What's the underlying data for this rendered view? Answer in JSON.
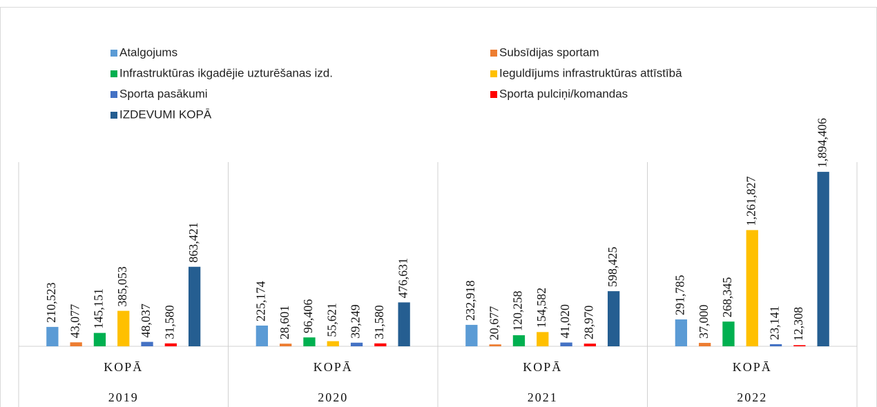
{
  "chart_data": {
    "type": "bar",
    "categories": [
      "KOPĀ",
      "KOPĀ",
      "KOPĀ",
      "KOPĀ"
    ],
    "category_groups": [
      "2019",
      "2020",
      "2021",
      "2022"
    ],
    "ylim": [
      0,
      2000000
    ],
    "series": [
      {
        "name": "Atalgojums",
        "color": "#5b9bd5",
        "values": [
          210523,
          225174,
          232918,
          291785
        ],
        "value_labels": [
          "210,523",
          "225,174",
          "232,918",
          "291,785"
        ]
      },
      {
        "name": "Subsīdijas sportam",
        "color": "#ed7d31",
        "values": [
          43077,
          28601,
          20677,
          37000
        ],
        "value_labels": [
          "43,077",
          "28,601",
          "20,677",
          "37,000"
        ]
      },
      {
        "name": "Infrastruktūras ikgadējie uzturēšanas izd.",
        "color": "#00b050",
        "values": [
          145151,
          96406,
          120258,
          268345
        ],
        "value_labels": [
          "145,151",
          "96,406",
          "120,258",
          "268,345"
        ]
      },
      {
        "name": "Ieguldījums infrastruktūras attīstībā",
        "color": "#ffc000",
        "values": [
          385053,
          55621,
          154582,
          1261827
        ],
        "value_labels": [
          "385,053",
          "55,621",
          "154,582",
          "1,261,827"
        ]
      },
      {
        "name": "Sporta pasākumi",
        "color": "#4472c4",
        "values": [
          48037,
          39249,
          41020,
          23141
        ],
        "value_labels": [
          "48,037",
          "39,249",
          "41,020",
          "23,141"
        ]
      },
      {
        "name": "Sporta pulciņi/komandas",
        "color": "#ff0000",
        "values": [
          31580,
          31580,
          28970,
          12308
        ],
        "value_labels": [
          "31,580",
          "31,580",
          "28,970",
          "12,308"
        ]
      },
      {
        "name": "IZDEVUMI KOPĀ",
        "color": "#255e91",
        "values": [
          863421,
          476631,
          598425,
          1894406
        ],
        "value_labels": [
          "863,421",
          "476,631",
          "598,425",
          "1,894,406"
        ]
      }
    ]
  }
}
